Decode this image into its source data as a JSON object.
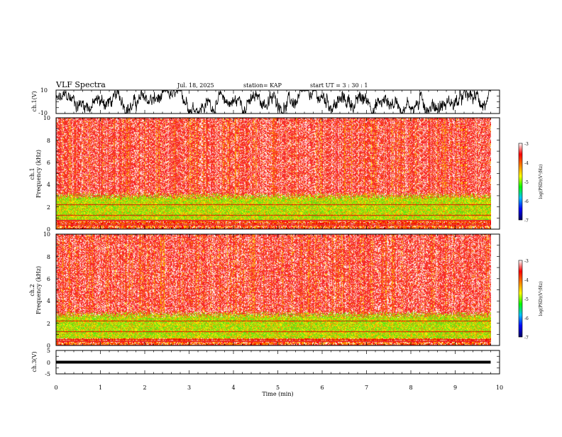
{
  "header": {
    "title": "VLF Spectra",
    "date": "Jul. 18, 2025",
    "station": "station= KAP",
    "start": "start  UT =  3 : 30 : 1"
  },
  "chart_data": [
    {
      "id": "ch1-waveform",
      "type": "line",
      "ylabel": "ch.1(V)",
      "ylim": [
        -10,
        10
      ],
      "yticks": [
        "10",
        "-10"
      ],
      "xlim": [
        0,
        10
      ],
      "x_extent_min": 9.8,
      "line_color": "#000000"
    },
    {
      "id": "ch1-spectrogram",
      "type": "heatmap",
      "ylabel_top": "ch.1",
      "ylabel": "Frequency (kHz)",
      "ylim": [
        0,
        10
      ],
      "yticks": [
        "0",
        "2",
        "4",
        "6",
        "8",
        "10"
      ],
      "xlim": [
        0,
        10
      ],
      "x_extent_min": 9.8,
      "green_band_khz": [
        0.9,
        3.0
      ],
      "colorbar": {
        "label": "log(PSD)(V²/Hz)",
        "range": [
          -7,
          -3
        ],
        "ticks": [
          "-3",
          "-4",
          "-5",
          "-6",
          "-7"
        ],
        "colors": [
          "#ffffff",
          "#ff0000",
          "#ff8000",
          "#ffff00",
          "#00ff00",
          "#00c0ff",
          "#0000ff",
          "#000060"
        ]
      }
    },
    {
      "id": "ch2-spectrogram",
      "type": "heatmap",
      "ylabel_top": "ch.2",
      "ylabel": "Frequency (kHz)",
      "ylim": [
        0,
        10
      ],
      "yticks": [
        "0",
        "2",
        "4",
        "6",
        "8",
        "10"
      ],
      "xlim": [
        0,
        10
      ],
      "x_extent_min": 9.8,
      "green_band_khz": [
        0.7,
        2.8
      ],
      "colorbar": {
        "label": "log(PSD)(V²/Hz)",
        "range": [
          -7,
          -3
        ],
        "ticks": [
          "-3",
          "-4",
          "-5",
          "-6",
          "-7"
        ],
        "colors": [
          "#ffffff",
          "#ff0000",
          "#ff8000",
          "#ffff00",
          "#00ff00",
          "#00c0ff",
          "#0000ff",
          "#000060"
        ]
      }
    },
    {
      "id": "ch3-waveform",
      "type": "line",
      "ylabel": "ch.3(V)",
      "ylim": [
        -5,
        5
      ],
      "yticks": [
        "5",
        "0",
        "-5"
      ],
      "xlim": [
        0,
        10
      ],
      "x_extent_min": 9.8,
      "level_v": [
        -0.6,
        0.6
      ],
      "line_color": "#000000"
    }
  ],
  "x_axis": {
    "label": "Time (min)",
    "ticks": [
      "0",
      "1",
      "2",
      "3",
      "4",
      "5",
      "6",
      "7",
      "8",
      "9",
      "10"
    ]
  }
}
